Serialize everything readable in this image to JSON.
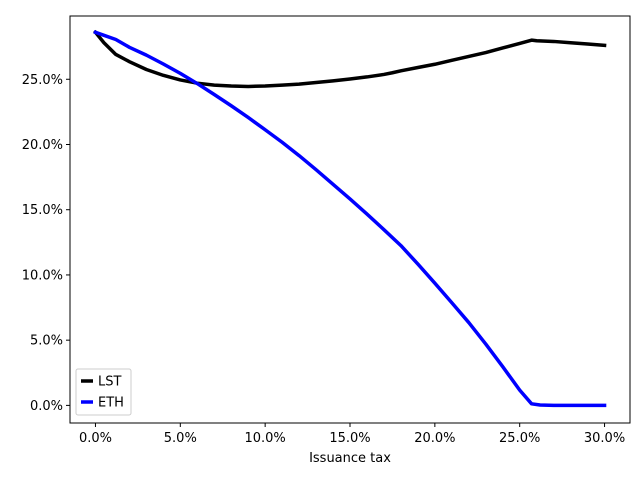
{
  "chart_data": {
    "type": "line",
    "title": "",
    "xlabel": "Issuance tax",
    "ylabel": "",
    "xlim": [
      -0.015,
      0.315
    ],
    "ylim": [
      -0.0135,
      0.2985
    ],
    "x_ticks": [
      0.0,
      0.05,
      0.1,
      0.15,
      0.2,
      0.25,
      0.3
    ],
    "x_tick_labels": [
      "0.0%",
      "5.0%",
      "10.0%",
      "15.0%",
      "20.0%",
      "25.0%",
      "30.0%"
    ],
    "y_ticks": [
      0.0,
      0.05,
      0.1,
      0.15,
      0.2,
      0.25
    ],
    "y_tick_labels": [
      "0.0%",
      "5.0%",
      "10.0%",
      "15.0%",
      "20.0%",
      "25.0%"
    ],
    "grid": false,
    "legend": {
      "placement": "lower-left"
    },
    "series": [
      {
        "name": "LST",
        "color": "#000000",
        "x": [
          0.0,
          0.005,
          0.012,
          0.02,
          0.03,
          0.04,
          0.05,
          0.06,
          0.07,
          0.08,
          0.09,
          0.1,
          0.11,
          0.12,
          0.13,
          0.14,
          0.15,
          0.16,
          0.17,
          0.175,
          0.18,
          0.19,
          0.2,
          0.21,
          0.22,
          0.23,
          0.24,
          0.25,
          0.257,
          0.26,
          0.27,
          0.28,
          0.29,
          0.3
        ],
        "y": [
          0.286,
          0.278,
          0.269,
          0.2635,
          0.2575,
          0.253,
          0.2495,
          0.247,
          0.2455,
          0.2448,
          0.2445,
          0.2448,
          0.2455,
          0.2463,
          0.2475,
          0.2488,
          0.2502,
          0.2518,
          0.2537,
          0.255,
          0.2565,
          0.259,
          0.2615,
          0.2645,
          0.2675,
          0.2705,
          0.274,
          0.2775,
          0.28,
          0.2795,
          0.279,
          0.278,
          0.277,
          0.276
        ]
      },
      {
        "name": "ETH",
        "color": "#0000ff",
        "x": [
          0.0,
          0.005,
          0.012,
          0.02,
          0.03,
          0.04,
          0.05,
          0.06,
          0.07,
          0.08,
          0.09,
          0.1,
          0.11,
          0.12,
          0.13,
          0.14,
          0.15,
          0.16,
          0.17,
          0.18,
          0.19,
          0.2,
          0.21,
          0.22,
          0.23,
          0.24,
          0.25,
          0.257,
          0.262,
          0.27,
          0.28,
          0.29,
          0.3
        ],
        "y": [
          0.286,
          0.2837,
          0.2805,
          0.2745,
          0.2685,
          0.2617,
          0.2545,
          0.2467,
          0.2383,
          0.2297,
          0.2207,
          0.2113,
          0.2017,
          0.1915,
          0.1807,
          0.1695,
          0.1583,
          0.1467,
          0.1347,
          0.1225,
          0.1083,
          0.0937,
          0.0787,
          0.0635,
          0.047,
          0.0297,
          0.0117,
          0.0012,
          0.0003,
          0.0,
          0.0,
          0.0,
          0.0
        ]
      }
    ]
  }
}
